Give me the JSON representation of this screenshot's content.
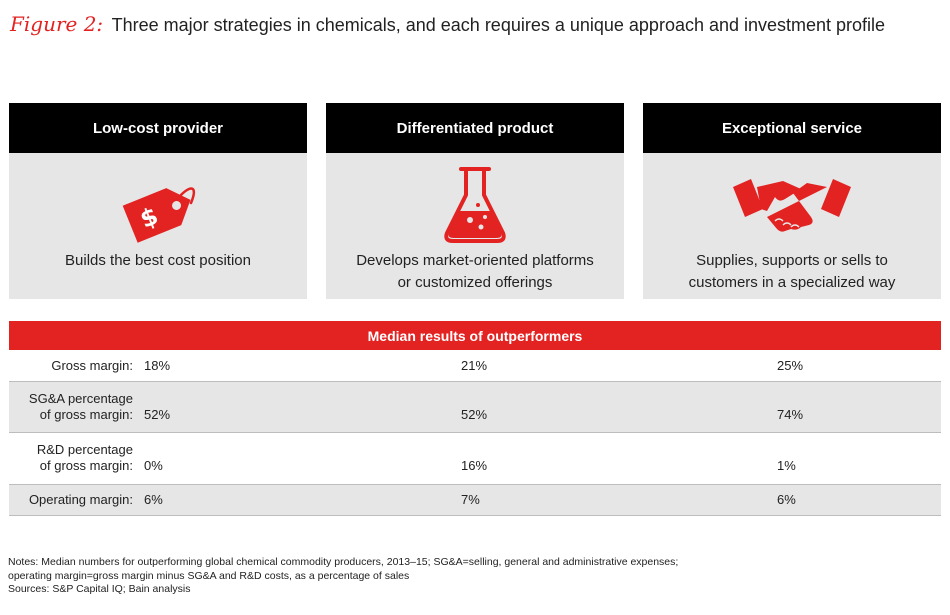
{
  "title": {
    "figure_label": "Figure 2:",
    "text": "Three major strategies in chemicals, and each requires a unique approach and investment profile"
  },
  "colors": {
    "accent": "#e32222",
    "header_bg": "#000000",
    "panel_bg": "#e6e6e6"
  },
  "strategies": [
    {
      "heading": "Low-cost provider",
      "icon": "price-tag-icon",
      "description_lines": [
        "Builds the best cost position"
      ]
    },
    {
      "heading": "Differentiated product",
      "icon": "flask-icon",
      "description_lines": [
        "Develops market-oriented platforms",
        "or customized offerings"
      ]
    },
    {
      "heading": "Exceptional service",
      "icon": "handshake-icon",
      "description_lines": [
        "Supplies, supports or sells to",
        "customers in a specialized way"
      ]
    }
  ],
  "results": {
    "heading": "Median results of outperformers",
    "rows": [
      {
        "label_lines": [
          "Gross margin:"
        ],
        "values": [
          "18%",
          "21%",
          "25%"
        ]
      },
      {
        "label_lines": [
          "SG&A percentage",
          "of gross margin:"
        ],
        "values": [
          "52%",
          "52%",
          "74%"
        ]
      },
      {
        "label_lines": [
          "R&D percentage",
          "of gross margin:"
        ],
        "values": [
          "0%",
          "16%",
          "1%"
        ]
      },
      {
        "label_lines": [
          "Operating margin:"
        ],
        "values": [
          "6%",
          "7%",
          "6%"
        ]
      }
    ]
  },
  "notes": [
    "Notes: Median numbers for outperforming global chemical commodity producers, 2013–15; SG&A=selling, general and administrative expenses;",
    "operating margin=gross margin minus SG&A and R&D costs, as a percentage of sales",
    "Sources: S&P Capital IQ; Bain analysis"
  ]
}
